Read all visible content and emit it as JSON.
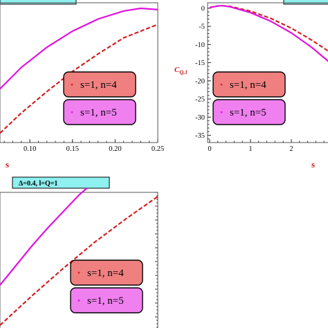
{
  "chart_data": [
    {
      "type": "line",
      "xlabel": "s",
      "ylabel": "",
      "xlim": [
        0.065,
        0.25
      ],
      "x_ticks": [
        "0.10",
        "0.15",
        "0.20",
        "0.25"
      ],
      "series": [
        {
          "name": "s=1, n=4",
          "color": "#d42020",
          "style": "dashed",
          "x": [
            0.065,
            0.09,
            0.12,
            0.15,
            0.18,
            0.21,
            0.25
          ],
          "y": [
            0.07,
            0.22,
            0.38,
            0.53,
            0.66,
            0.78,
            0.88
          ]
        },
        {
          "name": "s=1, n=5",
          "color": "#e010e0",
          "style": "solid",
          "x": [
            0.065,
            0.09,
            0.12,
            0.15,
            0.18,
            0.21,
            0.23,
            0.25
          ],
          "y": [
            0.4,
            0.56,
            0.71,
            0.83,
            0.92,
            0.98,
            1.0,
            0.99
          ]
        }
      ],
      "legend": [
        {
          "label": "s=1, n=4",
          "box": "#f08080",
          "marker": "#d42020"
        },
        {
          "label": "s=1, n=5",
          "box": "#f080f0",
          "marker": "#e010e0"
        }
      ]
    },
    {
      "type": "line",
      "xlabel": "s",
      "ylabel": "C_{Q,1}",
      "xlim": [
        -0.05,
        3
      ],
      "ylim": [
        -37,
        1.5
      ],
      "x_ticks": [
        "0",
        "1",
        "2"
      ],
      "y_ticks": [
        "0",
        "-5",
        "-10",
        "-15",
        "-20",
        "-25",
        "-30",
        "-35"
      ],
      "series": [
        {
          "name": "s=1, n=4",
          "color": "#d42020",
          "style": "dashed",
          "x": [
            0,
            0.2,
            0.3,
            0.5,
            1.0,
            1.5,
            2.0,
            2.5,
            3.0
          ],
          "y": [
            0.2,
            0.6,
            0.7,
            0.5,
            -0.8,
            -2.8,
            -5.5,
            -8.8,
            -12.5
          ]
        },
        {
          "name": "s=1, n=5",
          "color": "#e010e0",
          "style": "solid",
          "x": [
            0,
            0.2,
            0.3,
            0.5,
            1.0,
            1.5,
            2.0,
            2.5,
            3.0
          ],
          "y": [
            0.2,
            0.6,
            0.7,
            0.4,
            -1.2,
            -3.6,
            -6.8,
            -10.8,
            -15.5
          ]
        }
      ],
      "legend": [
        {
          "label": "s=1, n=4",
          "box": "#f08080",
          "marker": "#d42020"
        },
        {
          "label": "s=1, n=5",
          "box": "#f080f0",
          "marker": "#e010e0"
        }
      ]
    },
    {
      "type": "line",
      "badge": "Δ=0.4, l=Q=1",
      "series": [
        {
          "name": "s=1, n=4",
          "color": "#d42020",
          "style": "dashed",
          "x": [
            0,
            0.2,
            0.4,
            0.6,
            0.8,
            1.0
          ],
          "y": [
            0.04,
            0.25,
            0.45,
            0.64,
            0.81,
            0.97
          ]
        },
        {
          "name": "s=1, n=5",
          "color": "#e010e0",
          "style": "solid",
          "x": [
            0,
            0.1,
            0.2,
            0.3,
            0.4,
            0.5,
            0.55
          ],
          "y": [
            0.33,
            0.47,
            0.61,
            0.74,
            0.86,
            0.98,
            1.03
          ]
        }
      ],
      "legend": [
        {
          "label": "s=1, n=4",
          "box": "#f08080",
          "marker": "#d42020"
        },
        {
          "label": "s=1, n=5",
          "box": "#f080f0",
          "marker": "#e010e0"
        }
      ]
    }
  ]
}
